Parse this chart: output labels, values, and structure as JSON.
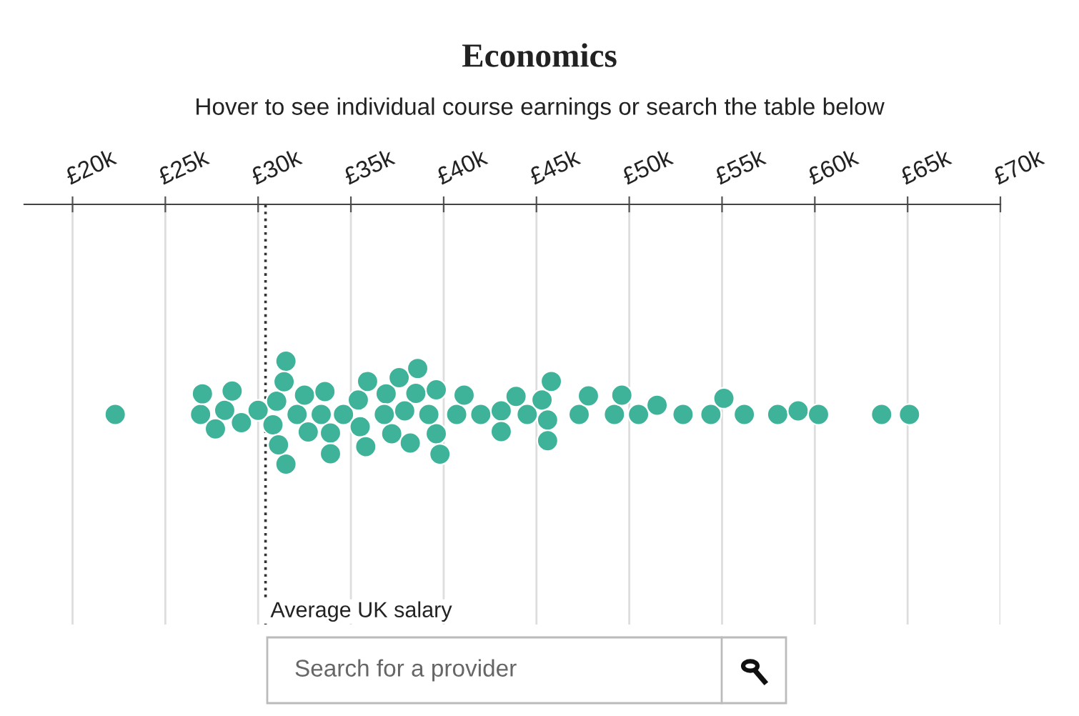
{
  "chart_data": {
    "type": "scatter",
    "orientation": "horizontal",
    "title": "Economics",
    "subtitle": "Hover to see individual course earnings or search the table below",
    "grid": "x",
    "marker": "circle",
    "categories": [
      null
    ],
    "xlim": [
      17.4,
      70
    ],
    "xticks": [
      {
        "value": 20,
        "label": "£20k"
      },
      {
        "value": 25,
        "label": "£25k"
      },
      {
        "value": 30,
        "label": "£30k"
      },
      {
        "value": 35,
        "label": "£35k"
      },
      {
        "value": 40,
        "label": "£40k"
      },
      {
        "value": 45,
        "label": "£45k"
      },
      {
        "value": 50,
        "label": "£50k"
      },
      {
        "value": 55,
        "label": "£55k"
      },
      {
        "value": 60,
        "label": "£60k"
      },
      {
        "value": 65,
        "label": "£65k"
      },
      {
        "value": 70,
        "label": "£70k"
      }
    ],
    "ref_lines": [
      {
        "axis": "x",
        "value": 30.4,
        "label": "Average UK salary",
        "line_style": "dotted",
        "color": "#333333"
      }
    ],
    "annotations": [
      "Search for a provider"
    ],
    "series": [
      {
        "color": "#3eb39a",
        "x": [
          null,
          null,
          null,
          null,
          null,
          null,
          null,
          null,
          null,
          null,
          null,
          null,
          null,
          null,
          null,
          null,
          null,
          null,
          null,
          null,
          null,
          null,
          null,
          null,
          null,
          null,
          null,
          null,
          null,
          null,
          null,
          null,
          null,
          null,
          null,
          null,
          null,
          null,
          null,
          null,
          null,
          null,
          null,
          null,
          null,
          null,
          null,
          null,
          null,
          null,
          null,
          null,
          null,
          null,
          null,
          null,
          null,
          null,
          null,
          null,
          null,
          null,
          null,
          null
        ],
        "values": [
          22.3,
          26.9,
          28.2,
          27.7,
          29.1,
          27.0,
          28.6,
          30.0,
          31.5,
          31.0,
          30.8,
          32.1,
          31.5,
          32.7,
          31.1,
          32.5,
          31.4,
          33.9,
          33.4,
          34.6,
          33.9,
          33.6,
          35.4,
          35.9,
          35.5,
          35.8,
          36.9,
          37.2,
          36.8,
          37.6,
          38.5,
          38.6,
          38.2,
          37.9,
          39.6,
          39.8,
          39.6,
          39.2,
          40.7,
          41.1,
          42.0,
          43.1,
          43.1,
          43.9,
          44.5,
          45.3,
          45.6,
          45.8,
          45.6,
          47.3,
          47.8,
          49.2,
          49.6,
          50.5,
          51.5,
          52.9,
          54.4,
          55.1,
          56.2,
          58.0,
          59.1,
          60.2,
          63.6,
          65.1
        ]
      }
    ]
  }
}
